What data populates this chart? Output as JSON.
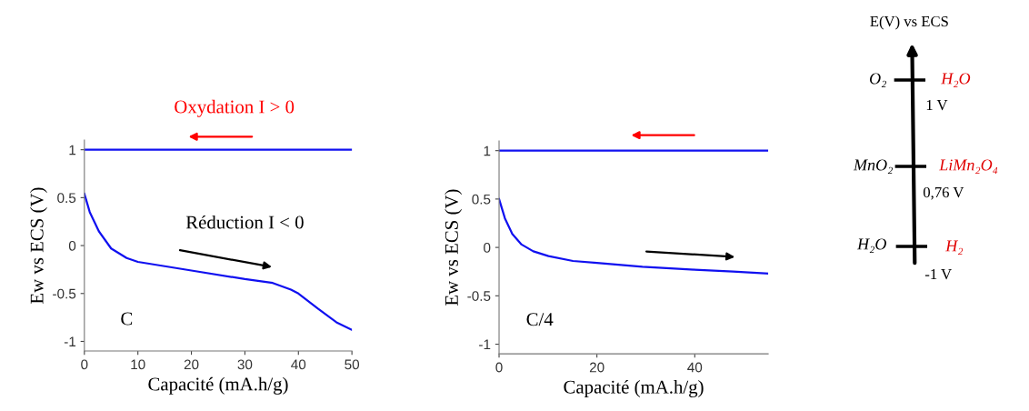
{
  "chart_data": [
    {
      "type": "line",
      "xlabel": "Capacité (mA.h/g)",
      "ylabel": "Ew vs ECS (V)",
      "xlim": [
        0,
        50
      ],
      "ylim": [
        -1.1,
        1.1
      ],
      "xticks": [
        0,
        10,
        20,
        30,
        40,
        50
      ],
      "yticks": [
        -1,
        -0.5,
        0,
        0.5,
        1
      ],
      "grid": false,
      "legend": false,
      "series": [
        {
          "color": "#1010f0",
          "x": [
            0,
            50
          ],
          "values": [
            1,
            1
          ]
        },
        {
          "color": "#1010f0",
          "x": [
            0,
            1.0,
            2.7,
            5,
            7.9,
            10,
            20,
            30,
            35.2,
            38.6,
            40,
            43.7,
            47.1,
            50
          ],
          "values": [
            0.54,
            0.35,
            0.15,
            -0.03,
            -0.13,
            -0.17,
            -0.26,
            -0.35,
            -0.39,
            -0.46,
            -0.5,
            -0.66,
            -0.8,
            -0.88
          ]
        }
      ],
      "annotations": [
        "Oxydation I > 0",
        "Réduction I < 0",
        "C"
      ]
    },
    {
      "type": "line",
      "xlabel": "Capacité (mA.h/g)",
      "ylabel": "Ew vs ECS (V)",
      "xlim": [
        0,
        55
      ],
      "ylim": [
        -1.1,
        1.1
      ],
      "xticks": [
        0,
        20,
        40
      ],
      "yticks": [
        -1,
        -0.5,
        0,
        0.5,
        1
      ],
      "grid": false,
      "legend": false,
      "series": [
        {
          "color": "#1010f0",
          "x": [
            0,
            55
          ],
          "values": [
            1,
            1
          ]
        },
        {
          "color": "#1010f0",
          "x": [
            0,
            1.2,
            2.7,
            4.6,
            7.0,
            10.1,
            15.1,
            20,
            29.3,
            40,
            47.8,
            55
          ],
          "values": [
            0.5,
            0.3,
            0.14,
            0.03,
            -0.04,
            -0.09,
            -0.14,
            -0.16,
            -0.2,
            -0.23,
            -0.25,
            -0.27
          ]
        }
      ],
      "annotations": [
        "C/4"
      ]
    },
    {
      "type": "other",
      "title": "E(V) vs ECS",
      "annotations": [
        "O₂",
        "H₂O",
        "1 V",
        "MnO₂",
        "LiMn₂O₄",
        "0,76 V",
        "H₂O",
        "H₂",
        "-1 V"
      ]
    }
  ]
}
